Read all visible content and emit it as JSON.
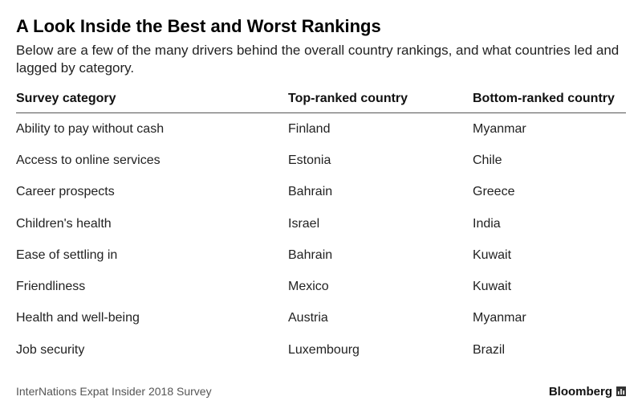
{
  "chart_data": {
    "type": "table",
    "title": "A Look Inside the Best and Worst Rankings",
    "subtitle": "Below are a few of the many drivers behind the overall country rankings, and what countries led and lagged by category.",
    "columns": [
      "Survey category",
      "Top-ranked country",
      "Bottom-ranked country"
    ],
    "rows": [
      [
        "Ability to pay without cash",
        "Finland",
        "Myanmar"
      ],
      [
        "Access to online services",
        "Estonia",
        "Chile"
      ],
      [
        "Career prospects",
        "Bahrain",
        "Greece"
      ],
      [
        "Children's health",
        "Israel",
        "India"
      ],
      [
        "Ease of settling in",
        "Bahrain",
        "Kuwait"
      ],
      [
        "Friendliness",
        "Mexico",
        "Kuwait"
      ],
      [
        "Health and well-being",
        "Austria",
        "Myanmar"
      ],
      [
        "Job security",
        "Luxembourg",
        "Brazil"
      ]
    ],
    "source": "InterNations Expat Insider 2018 Survey",
    "brand": "Bloomberg"
  },
  "icons": {
    "brand_icon": "bloomberg-chart-icon"
  }
}
